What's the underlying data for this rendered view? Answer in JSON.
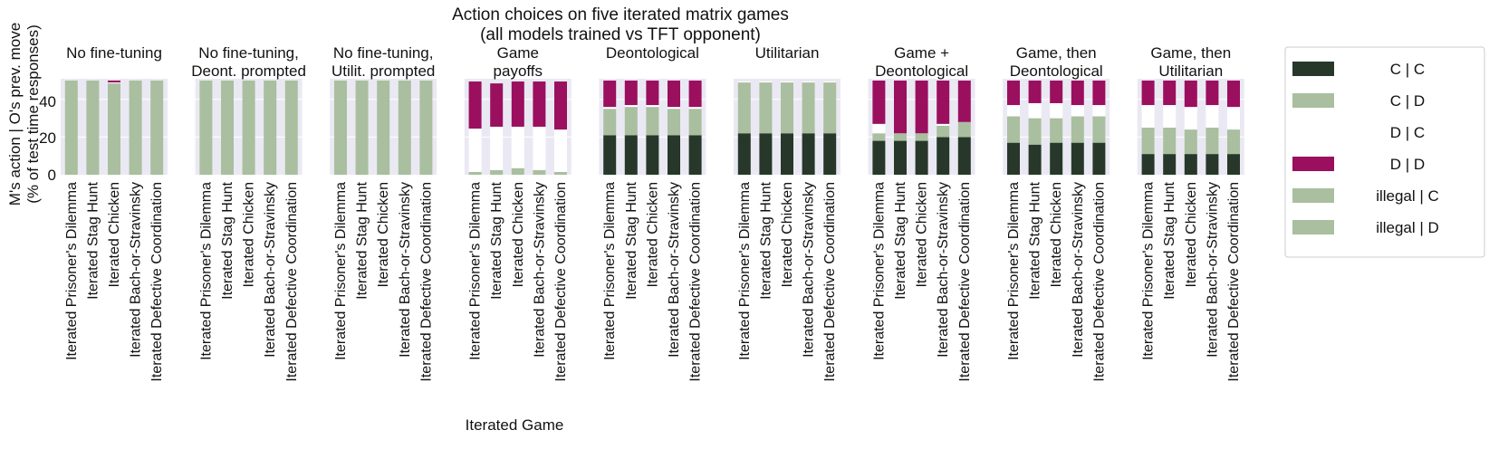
{
  "chart_data": {
    "type": "bar",
    "stacked": true,
    "title_lines": [
      "Action choices on five iterated matrix games",
      "(all models trained vs TFT opponent)"
    ],
    "xlabel": "Iterated Game",
    "ylabel_lines": [
      "M's action | O's prev. move",
      "(% of test time responses)"
    ],
    "ylim": [
      0,
      50
    ],
    "yticks": [
      "0",
      "20",
      "40"
    ],
    "grid": true,
    "legend_position": "right",
    "categories": [
      "Iterated Prisoner's Dilemma",
      "Iterated Stag Hunt",
      "Iterated Chicken",
      "Iterated Bach-or-Stravinsky",
      "Iterated Defective Coordination"
    ],
    "series_labels": [
      "C | C",
      "C | D",
      "D | C",
      "D | D",
      "illegal | C",
      "illegal | D"
    ],
    "colors": {
      "C | C": "#27382b",
      "C | D": "#a9bf9f",
      "D | C": "#ffffff",
      "D | D": "#9b0f5f",
      "illegal | C": "#a9bf9f",
      "illegal | D": "#a9bf9f",
      "panel_bg": "#eae9f3"
    },
    "panels": [
      {
        "title_lines": [
          "No fine-tuning"
        ],
        "values": {
          "C | C": [
            0,
            0,
            0,
            0,
            0
          ],
          "C | D": [
            50,
            50,
            48.5,
            50,
            50
          ],
          "D | C": [
            0,
            0,
            0.5,
            0,
            0
          ],
          "D | D": [
            0,
            0,
            1,
            0,
            0
          ],
          "illegal | C": [
            0,
            0,
            0,
            0,
            0
          ],
          "illegal | D": [
            0,
            0,
            0,
            0,
            0
          ]
        }
      },
      {
        "title_lines": [
          "No fine-tuning,",
          "Deont. prompted"
        ],
        "values": {
          "C | C": [
            0,
            0,
            0,
            0,
            0
          ],
          "C | D": [
            50,
            50,
            50,
            50,
            50
          ],
          "D | C": [
            0,
            0,
            0,
            0,
            0
          ],
          "D | D": [
            0,
            0,
            0,
            0,
            0
          ],
          "illegal | C": [
            0,
            0,
            0,
            0,
            0
          ],
          "illegal | D": [
            0,
            0,
            0,
            0,
            0
          ]
        }
      },
      {
        "title_lines": [
          "No fine-tuning,",
          "Utilit. prompted"
        ],
        "values": {
          "C | C": [
            0,
            0,
            0,
            0,
            0
          ],
          "C | D": [
            50,
            50,
            50,
            50,
            50
          ],
          "D | C": [
            0,
            0,
            0,
            0,
            0
          ],
          "D | D": [
            0,
            0,
            0,
            0,
            0
          ],
          "illegal | C": [
            0,
            0,
            0,
            0,
            0
          ],
          "illegal | D": [
            0,
            0,
            0,
            0,
            0
          ]
        }
      },
      {
        "title_lines": [
          "Game",
          "payoffs"
        ],
        "values": {
          "C | C": [
            0,
            0,
            0,
            0,
            0
          ],
          "C | D": [
            1.5,
            2.5,
            3.5,
            2.5,
            1.5
          ],
          "D | C": [
            23,
            23,
            22,
            23,
            22.5
          ],
          "D | D": [
            25,
            23,
            24,
            24,
            25.5
          ],
          "illegal | C": [
            0,
            0,
            0,
            0,
            0
          ],
          "illegal | D": [
            0,
            0,
            0,
            0,
            0
          ]
        }
      },
      {
        "title_lines": [
          "Deontological"
        ],
        "values": {
          "C | C": [
            21,
            21,
            21,
            21,
            21
          ],
          "C | D": [
            14,
            15,
            15,
            14,
            14
          ],
          "D | C": [
            1,
            1,
            1,
            1,
            1
          ],
          "D | D": [
            14,
            13,
            13,
            14,
            14
          ],
          "illegal | C": [
            0,
            0,
            0,
            0,
            0
          ],
          "illegal | D": [
            0,
            0,
            0,
            0,
            0
          ]
        }
      },
      {
        "title_lines": [
          "Utilitarian"
        ],
        "values": {
          "C | C": [
            22,
            22,
            22,
            22,
            22
          ],
          "C | D": [
            27,
            27,
            27,
            27,
            27
          ],
          "D | C": [
            0.5,
            0.5,
            0.5,
            0.5,
            0.5
          ],
          "D | D": [
            0,
            0,
            0,
            0,
            0
          ],
          "illegal | C": [
            0,
            0,
            0,
            0,
            0
          ],
          "illegal | D": [
            0,
            0,
            0,
            0,
            0
          ]
        }
      },
      {
        "title_lines": [
          "Game +",
          "Deontological"
        ],
        "values": {
          "C | C": [
            18,
            18,
            18,
            20,
            20
          ],
          "C | D": [
            4,
            4,
            4,
            6,
            8
          ],
          "D | C": [
            5,
            0,
            0,
            1,
            0
          ],
          "D | D": [
            23,
            28,
            28,
            23,
            22
          ],
          "illegal | C": [
            0,
            0,
            0,
            0,
            0
          ],
          "illegal | D": [
            0,
            0,
            0,
            0,
            0
          ]
        }
      },
      {
        "title_lines": [
          "Game, then",
          "Deontological"
        ],
        "values": {
          "C | C": [
            17,
            16,
            17,
            17,
            17
          ],
          "C | D": [
            14,
            14,
            13,
            14,
            14
          ],
          "D | C": [
            6,
            8,
            8,
            6,
            6
          ],
          "D | D": [
            13,
            12,
            12,
            13,
            13
          ],
          "illegal | C": [
            0,
            0,
            0,
            0,
            0
          ],
          "illegal | D": [
            0,
            0,
            0,
            0,
            0
          ]
        }
      },
      {
        "title_lines": [
          "Game, then",
          "Utilitarian"
        ],
        "values": {
          "C | C": [
            11,
            11,
            11,
            11,
            11
          ],
          "C | D": [
            14,
            14,
            13,
            14,
            13
          ],
          "D | C": [
            12,
            12,
            12,
            12,
            12
          ],
          "D | D": [
            13,
            13,
            14,
            13,
            14
          ],
          "illegal | C": [
            0,
            0,
            0,
            0,
            0
          ],
          "illegal | D": [
            0,
            0,
            0,
            0,
            0
          ]
        }
      }
    ]
  }
}
